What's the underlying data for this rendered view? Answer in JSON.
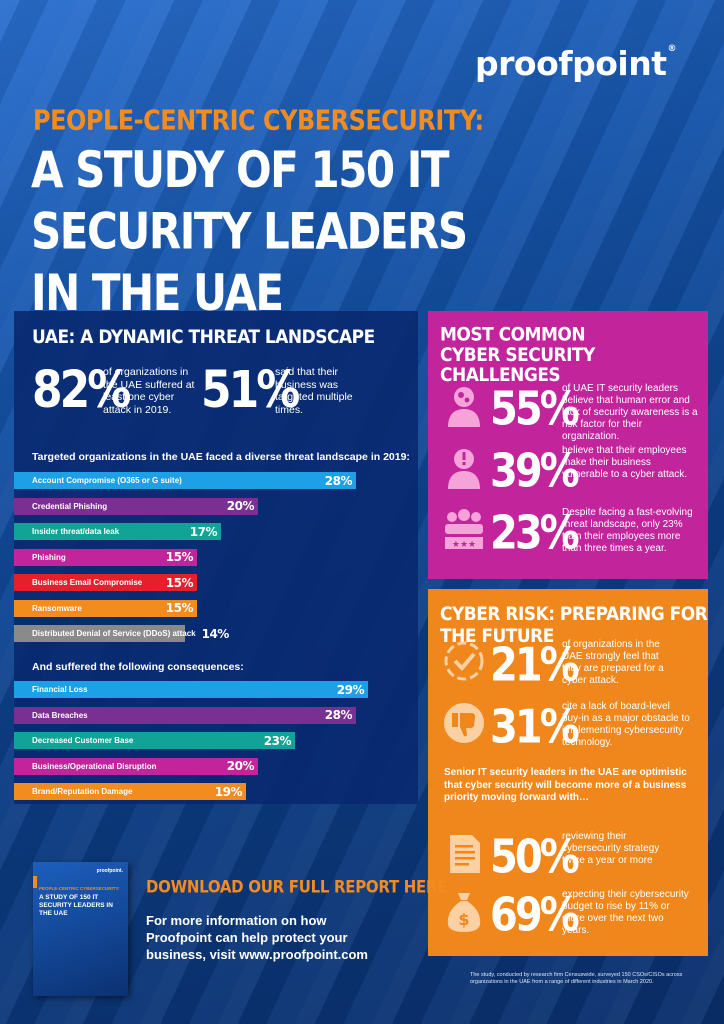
{
  "brand": {
    "logo": "proofpoint",
    "registered": "®"
  },
  "header": {
    "kicker": "PEOPLE-CENTRIC CYBERSECURITY:",
    "title": "A STUDY OF 150 IT SECURITY LEADERS IN THE UAE"
  },
  "threat_section": {
    "heading": "UAE: A DYNAMIC THREAT LANDSCAPE",
    "stat1": {
      "value": "82%",
      "text": "of organizations in the UAE suffered at least one cyber attack in 2019."
    },
    "stat2": {
      "value": "51%",
      "text": "said that their business was targeted multiple times."
    },
    "threats_heading": "Targeted organizations in the UAE faced a diverse threat landscape in 2019:",
    "threats": [
      {
        "label": "Account Compromise (O365 or G suite)",
        "value": 28,
        "display": "28%",
        "color": "#1ea0e6"
      },
      {
        "label": "Credential Phishing",
        "value": 20,
        "display": "20%",
        "color": "#7a2f93"
      },
      {
        "label": "Insider threat/data leak",
        "value": 17,
        "display": "17%",
        "color": "#11a396"
      },
      {
        "label": "Phishing",
        "value": 15,
        "display": "15%",
        "color": "#c2249b"
      },
      {
        "label": "Business Email Compromise",
        "value": 15,
        "display": "15%",
        "color": "#e6202a"
      },
      {
        "label": "Ransomware",
        "value": 15,
        "display": "15%",
        "color": "#f28c1e"
      },
      {
        "label": "Distributed Denial of Service (DDoS) attack",
        "value": 14,
        "display": "14%",
        "color": "#8a8a8a"
      }
    ],
    "consequences_heading": "And suffered the following consequences:",
    "consequences": [
      {
        "label": "Financial Loss",
        "value": 29,
        "display": "29%",
        "color": "#1ea0e6"
      },
      {
        "label": "Data Breaches",
        "value": 28,
        "display": "28%",
        "color": "#7a2f93"
      },
      {
        "label": "Decreased Customer Base",
        "value": 23,
        "display": "23%",
        "color": "#11a396"
      },
      {
        "label": "Business/Operational Disruption",
        "value": 20,
        "display": "20%",
        "color": "#c2249b"
      },
      {
        "label": "Brand/Reputation Damage",
        "value": 19,
        "display": "19%",
        "color": "#f28c1e"
      }
    ]
  },
  "challenges": {
    "heading": "MOST COMMON CYBER SECURITY CHALLENGES",
    "items": [
      {
        "value": "55%",
        "text": "of UAE IT security leaders believe that human error and lack of security awareness is a risk factor for their organization.",
        "icon": "person-gears-icon"
      },
      {
        "value": "39%",
        "text": "believe that their employees make their business vulnerable to a cyber attack.",
        "icon": "person-alert-icon"
      },
      {
        "value": "23%",
        "text": "Despite facing a fast-evolving threat landscape, only 23% train their employees more than three times a year.",
        "icon": "team-rating-icon"
      }
    ]
  },
  "future": {
    "heading": "CYBER RISK: PREPARING FOR THE FUTURE",
    "items": [
      {
        "value": "21%",
        "text": "of organizations in the UAE strongly feel that they are prepared for a cyber attack.",
        "icon": "check-circle-icon"
      },
      {
        "value": "31%",
        "text": "cite a lack of board-level buy-in as a major obstacle to implementing cybersecurity technology.",
        "icon": "thumbs-down-icon"
      }
    ],
    "optimism": "Senior IT security leaders in the UAE are optimistic that cyber security will become more of a business priority moving forward with…",
    "items2": [
      {
        "value": "50%",
        "text": "reviewing their cybersecurity strategy twice a year or more",
        "icon": "document-icon"
      },
      {
        "value": "69%",
        "text": "expecting their cybersecurity budget to rise by 11% or more over the next two years.",
        "icon": "money-bag-icon"
      }
    ]
  },
  "cta": {
    "heading": "DOWNLOAD OUR FULL REPORT HERE",
    "text": "For more information on how Proofpoint can help protect your business, visit www.proofpoint.com",
    "cover": {
      "logo": "proofpoint.",
      "kicker": "PEOPLE-CENTRIC CYBERSECURITY:",
      "title": "A STUDY OF 150 IT SECURITY LEADERS IN THE UAE"
    }
  },
  "footnote": "The study, conducted by research firm Censuswide, surveyed 150 CSOs/CISOs across organizations in the UAE from a range of different industries in March 2020."
}
